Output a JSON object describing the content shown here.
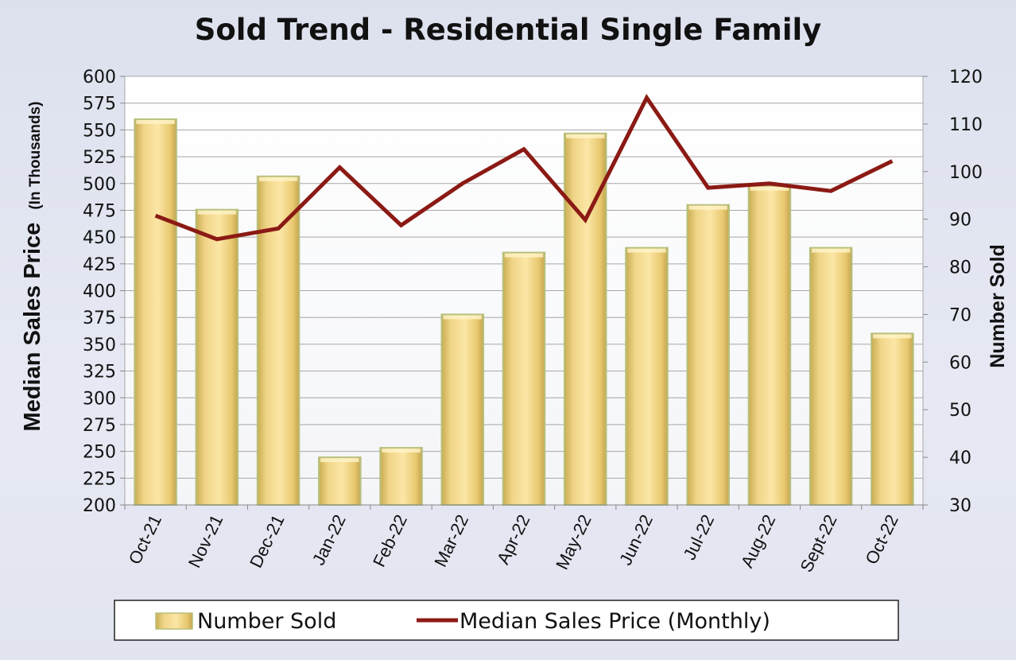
{
  "chart_data": {
    "type": "bar",
    "title": "Sold Trend - Residential Single Family",
    "categories": [
      "Oct-21",
      "Nov-21",
      "Dec-21",
      "Jan-22",
      "Feb-22",
      "Mar-22",
      "Apr-22",
      "May-22",
      "Jun-22",
      "Jul-22",
      "Aug-22",
      "Sept-22",
      "Oct-22"
    ],
    "series": [
      {
        "name": "Number Sold",
        "type": "bar",
        "axis": "right",
        "color": "#f2d486",
        "values": [
          111,
          92,
          99,
          40,
          42,
          70,
          83,
          108,
          84,
          93,
          97,
          84,
          66
        ]
      },
      {
        "name": "Median Sales Price (Monthly)",
        "type": "line",
        "axis": "left",
        "color": "#8b1a14",
        "values": [
          470,
          448,
          458,
          515,
          461,
          500,
          532,
          466,
          580,
          496,
          500,
          493,
          521
        ]
      }
    ],
    "ylabel_left": "Median Sales Price",
    "ylabel_left_sub": "(In Thousands)",
    "ylabel_right": "Number Sold",
    "ylim_left": [
      200,
      600
    ],
    "ylim_right": [
      30,
      120
    ],
    "yticks_left": [
      200,
      225,
      250,
      275,
      300,
      325,
      350,
      375,
      400,
      425,
      450,
      475,
      500,
      525,
      550,
      575,
      600
    ],
    "yticks_right": [
      30,
      40,
      50,
      60,
      70,
      80,
      90,
      100,
      110,
      120
    ],
    "grid": true,
    "legend_position": "bottom"
  }
}
